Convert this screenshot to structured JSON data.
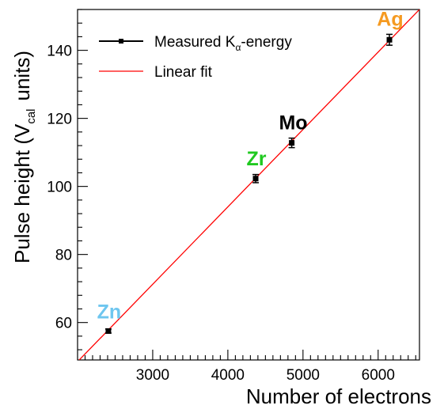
{
  "chart_data": {
    "type": "scatter",
    "xlabel": "Number of electrons",
    "ylabel_main": "Pulse height (V",
    "ylabel_sub": "cal",
    "ylabel_tail": "units)",
    "xlim": [
      2000,
      6550
    ],
    "ylim": [
      49,
      152
    ],
    "x_ticks": [
      3000,
      4000,
      5000,
      6000
    ],
    "x_tick_labels": [
      "3000",
      "4000",
      "5000",
      "6000"
    ],
    "y_ticks": [
      60,
      80,
      100,
      120,
      140
    ],
    "y_tick_labels": [
      "60",
      "80",
      "100",
      "120",
      "140"
    ],
    "legend": {
      "position": "top-left",
      "measured_main": "Measured K",
      "measured_sub": "α",
      "measured_tail": "-energy",
      "fit": "Linear fit"
    },
    "series": [
      {
        "name": "Measured Kα-energy",
        "color": "#000000",
        "points": [
          {
            "x": 2410,
            "y": 57.5,
            "err": 0.6
          },
          {
            "x": 4370,
            "y": 102.3,
            "err": 1.2
          },
          {
            "x": 4850,
            "y": 112.8,
            "err": 1.4
          },
          {
            "x": 6150,
            "y": 143.1,
            "err": 1.6
          }
        ]
      },
      {
        "name": "Linear fit",
        "color": "#ff0000",
        "line": {
          "x1": 2000,
          "y1": 48.5,
          "x2": 6550,
          "y2": 152.0
        }
      }
    ],
    "annotations": [
      {
        "text": "Zn",
        "x": 2420,
        "y": 61.2,
        "color": "#6ec6ef"
      },
      {
        "text": "Zr",
        "x": 4380,
        "y": 106.2,
        "color": "#1fc91f"
      },
      {
        "text": "Mo",
        "x": 4870,
        "y": 116.8,
        "color": "#000000"
      },
      {
        "text": "Ag",
        "x": 6160,
        "y": 147.2,
        "color": "#f59a21"
      }
    ]
  }
}
